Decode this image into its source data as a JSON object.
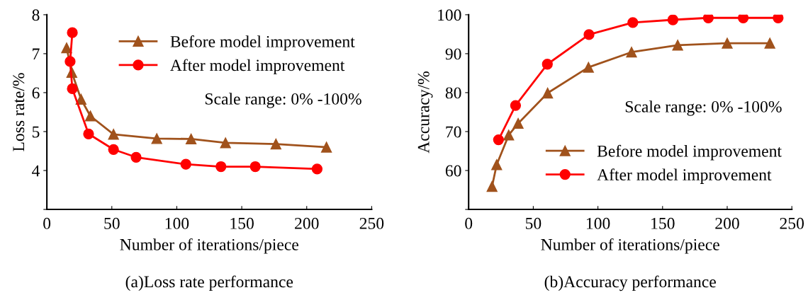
{
  "chart_data": [
    {
      "type": "line",
      "title": "(a)Loss rate performance",
      "xlabel": "Number of iterations/piece",
      "ylabel": "Loss rate/%",
      "xlim": [
        0,
        250
      ],
      "xticks": [
        0,
        50,
        100,
        150,
        200,
        250
      ],
      "ylim": [
        3,
        8
      ],
      "yticks": [
        {
          "value": 3,
          "label": null
        },
        4,
        5,
        6,
        7,
        8
      ],
      "grid": false,
      "legend": "top right",
      "line_style": "solid",
      "annotations": [
        "Scale range: 0% -100%"
      ],
      "series": [
        {
          "name": "Before model improvement",
          "color": "#a0521c",
          "marker": "triangle",
          "x": [
            15.2,
            19.2,
            26.3,
            33.5,
            51.3,
            84.6,
            111,
            137.5,
            176.3,
            215.2
          ],
          "values": [
            7.15,
            6.52,
            5.83,
            5.4,
            4.93,
            4.82,
            4.81,
            4.71,
            4.68,
            4.6
          ]
        },
        {
          "name": "After model improvement",
          "color": "#ff0000",
          "marker": "circle",
          "x": [
            19.6,
            17.9,
            19.6,
            32.1,
            51.3,
            68.7,
            107,
            134,
            160.4,
            208
          ],
          "values": [
            7.54,
            6.8,
            6.1,
            4.94,
            4.54,
            4.34,
            4.16,
            4.1,
            4.1,
            4.04
          ]
        }
      ]
    },
    {
      "type": "line",
      "title": "(b)Accuracy performance",
      "xlabel": "Number of iterations/piece",
      "ylabel": "Accuracy/%",
      "xlim": [
        0,
        250
      ],
      "xticks": [
        0,
        50,
        100,
        150,
        200,
        250
      ],
      "ylim": [
        50,
        100
      ],
      "yticks": [
        {
          "value": 50,
          "label": null
        },
        60,
        70,
        80,
        90,
        100
      ],
      "grid": false,
      "legend": "lower right",
      "line_style": "solid",
      "annotations": [
        "Scale range: 0% -100%"
      ],
      "series": [
        {
          "name": "Before model improvement",
          "color": "#a0521c",
          "marker": "triangle",
          "x": [
            18.1,
            21.7,
            31,
            38.3,
            61.1,
            92.7,
            126,
            161.7,
            200,
            233
          ],
          "values": [
            55.9,
            61.5,
            69.1,
            72.1,
            79.9,
            86.5,
            90.4,
            92.2,
            92.7,
            92.7
          ]
        },
        {
          "name": "After model improvement",
          "color": "#ff0000",
          "marker": "circle",
          "x": [
            23.1,
            36.3,
            60.9,
            93.1,
            127,
            158,
            185.4,
            212.4,
            239.4
          ],
          "values": [
            67.9,
            76.7,
            87.3,
            94.9,
            98,
            98.7,
            99.2,
            99.2,
            99.2
          ]
        }
      ]
    }
  ]
}
